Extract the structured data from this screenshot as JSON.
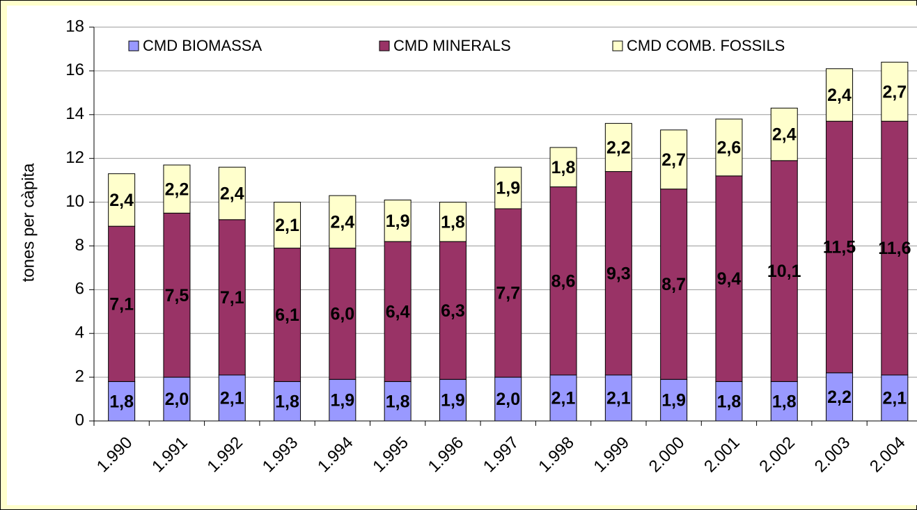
{
  "chart_data": {
    "type": "stacked_bar",
    "ylabel": "tones per càpita",
    "categories": [
      "1.990",
      "1.991",
      "1.992",
      "1.993",
      "1.994",
      "1.995",
      "1.996",
      "1.997",
      "1.998",
      "1.999",
      "2.000",
      "2.001",
      "2.002",
      "2.003",
      "2.004"
    ],
    "series": [
      {
        "name": "CMD BIOMASSA",
        "color": "#9999ff",
        "values": [
          1.8,
          2.0,
          2.1,
          1.8,
          1.9,
          1.8,
          1.9,
          2.0,
          2.1,
          2.1,
          1.9,
          1.8,
          1.8,
          2.2,
          2.1
        ],
        "value_labels": [
          "1,8",
          "2,0",
          "2,1",
          "1,8",
          "1,9",
          "1,8",
          "1,9",
          "2,0",
          "2,1",
          "2,1",
          "1,9",
          "1,8",
          "1,8",
          "2,2",
          "2,1"
        ]
      },
      {
        "name": "CMD MINERALS",
        "color": "#993366",
        "values": [
          7.1,
          7.5,
          7.1,
          6.1,
          6.0,
          6.4,
          6.3,
          7.7,
          8.6,
          9.3,
          8.7,
          9.4,
          10.1,
          11.5,
          11.6
        ],
        "value_labels": [
          "7,1",
          "7,5",
          "7,1",
          "6,1",
          "6,0",
          "6,4",
          "6,3",
          "7,7",
          "8,6",
          "9,3",
          "8,7",
          "9,4",
          "10,1",
          "11,5",
          "11,6"
        ]
      },
      {
        "name": "CMD COMB. FOSSILS",
        "color": "#ffffcc",
        "values": [
          2.4,
          2.2,
          2.4,
          2.1,
          2.4,
          1.9,
          1.8,
          1.9,
          1.8,
          2.2,
          2.7,
          2.6,
          2.4,
          2.4,
          2.7
        ],
        "value_labels": [
          "2,4",
          "2,2",
          "2,4",
          "2,1",
          "2,4",
          "1,9",
          "1,8",
          "1,9",
          "1,8",
          "2,2",
          "2,7",
          "2,6",
          "2,4",
          "2,4",
          "2,7"
        ]
      }
    ],
    "ylim": [
      0,
      18
    ],
    "yticks": [
      0,
      2,
      4,
      6,
      8,
      10,
      12,
      14,
      16,
      18
    ],
    "grid": true,
    "legend": "top"
  }
}
